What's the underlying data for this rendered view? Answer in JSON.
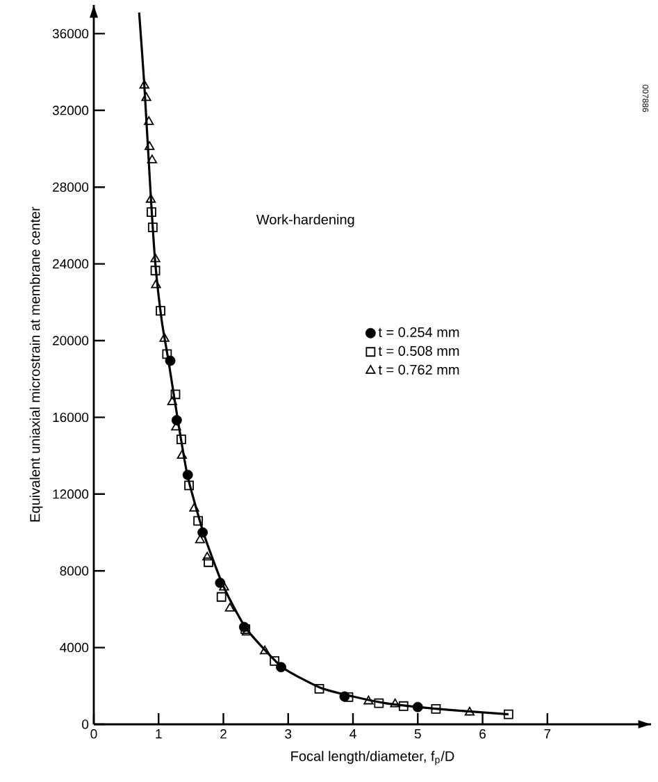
{
  "chart_data": {
    "type": "scatter",
    "xlabel": "Focal length/diameter, f$_{p}$/D",
    "ylabel": "Equivalent uniaxial microstrain at membrane center",
    "annotations": [
      "Work-hardening",
      "007886"
    ],
    "xlim": [
      0,
      8.6
    ],
    "ylim": [
      0,
      37500
    ],
    "xticks": [
      0,
      1,
      2,
      3,
      4,
      5,
      6,
      7
    ],
    "yticks": [
      0,
      4000,
      8000,
      12000,
      16000,
      20000,
      24000,
      28000,
      32000,
      36000
    ],
    "grid": false,
    "legend": "right",
    "series": [
      {
        "name": "t = 0.254 mm",
        "color": "#000000",
        "marker": "circle",
        "x": [
          1.18,
          1.28,
          1.45,
          1.68,
          1.95,
          2.32,
          2.89,
          3.87,
          5.0
        ],
        "values": [
          18950,
          15850,
          13000,
          10000,
          7370,
          5070,
          2980,
          1450,
          900
        ]
      },
      {
        "name": "t = 0.508 mm",
        "color": "#000000",
        "marker": "square",
        "x": [
          0.89,
          0.91,
          0.95,
          1.03,
          1.13,
          1.26,
          1.35,
          1.47,
          1.61,
          1.77,
          1.97,
          2.34,
          2.79,
          3.48,
          3.93,
          4.4,
          4.78,
          5.28,
          6.4
        ],
        "values": [
          26700,
          25900,
          23650,
          21550,
          19300,
          17200,
          14850,
          12450,
          10600,
          8450,
          6640,
          4960,
          3300,
          1850,
          1420,
          1100,
          950,
          800,
          520
        ]
      },
      {
        "name": "t = 0.762 mm",
        "color": "#000000",
        "marker": "triangle",
        "x": [
          0.78,
          0.81,
          0.85,
          0.86,
          0.9,
          0.88,
          0.95,
          0.96,
          1.09,
          1.21,
          1.27,
          1.36,
          1.55,
          1.64,
          1.75,
          2.01,
          2.1,
          2.36,
          2.64,
          4.24,
          4.65,
          5.8
        ],
        "values": [
          33300,
          32650,
          31400,
          30100,
          29400,
          27350,
          24250,
          22900,
          20100,
          16800,
          15480,
          14000,
          11250,
          9600,
          8700,
          7140,
          6040,
          4790,
          3810,
          1200,
          1050,
          620
        ]
      },
      {
        "type": "line",
        "color": "#000000",
        "marker": "none",
        "line_style": "solid",
        "x": [
          0.7,
          0.78,
          0.88,
          0.95,
          1.05,
          1.15,
          1.3,
          1.45,
          1.7,
          2.0,
          2.35,
          2.9,
          3.5,
          4.0,
          4.5,
          5.0,
          5.5,
          6.0,
          6.4
        ],
        "values": [
          37100,
          33300,
          27500,
          24000,
          21000,
          19000,
          15800,
          12900,
          9900,
          7200,
          5000,
          3000,
          1900,
          1450,
          1100,
          900,
          750,
          620,
          520
        ]
      }
    ]
  }
}
